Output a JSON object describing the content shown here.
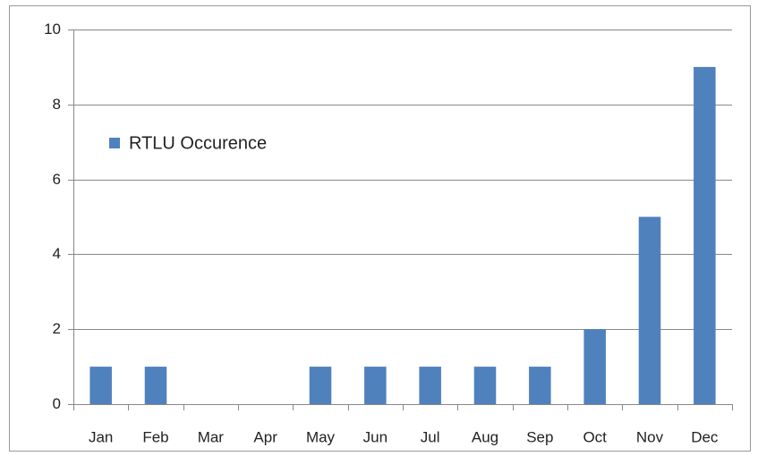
{
  "chart_data": {
    "type": "bar",
    "categories": [
      "Jan",
      "Feb",
      "Mar",
      "Apr",
      "May",
      "Jun",
      "Jul",
      "Aug",
      "Sep",
      "Oct",
      "Nov",
      "Dec"
    ],
    "series": [
      {
        "name": "RTLU Occurence",
        "color": "#4f81bd",
        "values": [
          1,
          1,
          0,
          0,
          1,
          1,
          1,
          1,
          1,
          2,
          5,
          9
        ]
      }
    ],
    "ylim": [
      0,
      10
    ],
    "yticks": [
      0,
      2,
      4,
      6,
      8,
      10
    ],
    "grid": true,
    "legend": "upper left"
  }
}
